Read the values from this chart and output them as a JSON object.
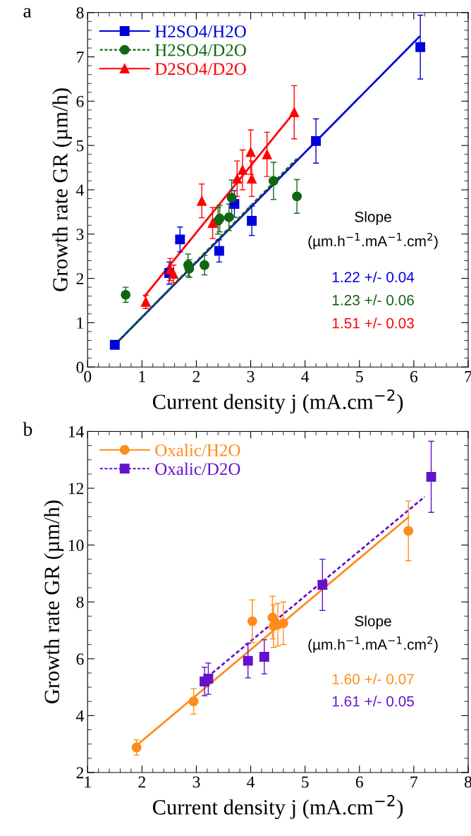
{
  "chart_data": [
    {
      "type": "scatter",
      "title": "a",
      "xlabel": "Current density j (mA.cm$^{−2}$)",
      "ylabel": "Growth rate GR (µm/h)",
      "xlim": [
        0,
        7
      ],
      "ylim": [
        0,
        8
      ],
      "xticks": [
        0,
        1,
        2,
        3,
        4,
        5,
        6,
        7
      ],
      "yticks": [
        0,
        1,
        2,
        3,
        4,
        5,
        6,
        7,
        8
      ],
      "legend": "top left",
      "annotations": [
        "Slope",
        "(µm.h$^{−1}$.mA$^{−1}$.cm$^{2}$)",
        "1.22 +/- 0.04",
        "1.23 +/- 0.06",
        "1.51 +/- 0.03"
      ],
      "series": [
        {
          "name": "H2SO4/H2O",
          "color": "#0000dd",
          "marker": "square",
          "line_style": "solid",
          "x": [
            0.5,
            1.5,
            1.7,
            2.42,
            2.7,
            3.02,
            4.2,
            6.12
          ],
          "values": [
            0.5,
            2.12,
            2.88,
            2.62,
            3.68,
            3.3,
            5.1,
            7.22
          ],
          "errors": [
            null,
            0.25,
            0.28,
            0.25,
            0.3,
            0.33,
            0.5,
            0.72
          ]
        },
        {
          "name": "H2SO4/D2O",
          "color": "#116611",
          "marker": "circle",
          "line_style": "dashed",
          "x": [
            0.7,
            1.85,
            1.87,
            2.15,
            2.4,
            2.43,
            2.6,
            2.65,
            3.42,
            3.85
          ],
          "values": [
            1.63,
            2.3,
            2.22,
            2.3,
            3.3,
            3.35,
            3.38,
            3.82,
            4.2,
            3.85
          ],
          "errors": [
            0.17,
            0.25,
            0.2,
            0.22,
            0.3,
            0.3,
            0.3,
            0.4,
            0.42,
            0.38
          ]
        },
        {
          "name": "D2SO4/D2O",
          "color": "#ff0000",
          "marker": "triangle",
          "line_style": "solid",
          "x": [
            1.07,
            1.52,
            1.58,
            2.1,
            2.3,
            2.75,
            2.85,
            3.0,
            3.02,
            3.3,
            3.8
          ],
          "values": [
            1.47,
            2.2,
            2.1,
            3.75,
            3.25,
            4.25,
            4.45,
            4.85,
            4.25,
            4.8,
            5.75
          ],
          "errors": [
            0.15,
            0.25,
            0.2,
            0.38,
            0.35,
            0.4,
            0.45,
            0.5,
            0.4,
            0.5,
            0.6
          ]
        },
        {
          "type": "line",
          "color": "#0000dd",
          "line_style": "solid",
          "x": [
            0.5,
            6.1
          ],
          "values": [
            0.5,
            7.45
          ]
        },
        {
          "type": "line",
          "color": "#116611",
          "line_style": "dashed",
          "x": [
            0.5,
            3.85
          ],
          "values": [
            0.5,
            4.7
          ]
        },
        {
          "type": "line",
          "color": "#ff0000",
          "line_style": "solid",
          "x": [
            1.05,
            3.8
          ],
          "values": [
            1.6,
            5.75
          ]
        }
      ]
    },
    {
      "type": "scatter",
      "title": "b",
      "xlabel": "Current density j (mA.cm$^{−2}$)",
      "ylabel": "Growth rate GR (µm/h)",
      "xlim": [
        1,
        8
      ],
      "ylim": [
        2,
        14
      ],
      "xticks": [
        1,
        2,
        3,
        4,
        5,
        6,
        7,
        8
      ],
      "yticks": [
        2,
        4,
        6,
        8,
        10,
        12,
        14
      ],
      "legend": "top left",
      "annotations": [
        "Slope",
        "(µm.h$^{−1}$.mA$^{−1}$.cm$^{2}$)",
        "1.60 +/- 0.07",
        "1.61 +/- 0.05"
      ],
      "series": [
        {
          "name": "Oxalic/H2O",
          "color": "#ff8c1a",
          "marker": "circle",
          "line_style": "solid",
          "x": [
            1.9,
            2.95,
            4.03,
            4.4,
            4.42,
            4.5,
            4.6,
            6.9
          ],
          "values": [
            2.88,
            4.5,
            7.32,
            7.45,
            7.15,
            7.2,
            7.25,
            10.5
          ],
          "errors": [
            0.27,
            0.45,
            0.75,
            0.75,
            0.75,
            0.75,
            0.75,
            1.05
          ]
        },
        {
          "name": "Oxalic/D2O",
          "color": "#6611cc",
          "marker": "square",
          "line_style": "dashed",
          "x": [
            3.15,
            3.22,
            3.95,
            4.25,
            5.32,
            7.32
          ],
          "values": [
            5.2,
            5.3,
            5.93,
            6.07,
            8.6,
            12.4
          ],
          "errors": [
            0.5,
            0.55,
            0.6,
            0.6,
            0.9,
            1.25
          ]
        },
        {
          "type": "line",
          "color": "#ff8c1a",
          "line_style": "solid",
          "x": [
            1.9,
            6.9
          ],
          "values": [
            2.95,
            10.98
          ]
        },
        {
          "type": "line",
          "color": "#6611cc",
          "line_style": "dashed",
          "x": [
            3.2,
            7.2
          ],
          "values": [
            5.35,
            11.7
          ]
        }
      ]
    }
  ]
}
